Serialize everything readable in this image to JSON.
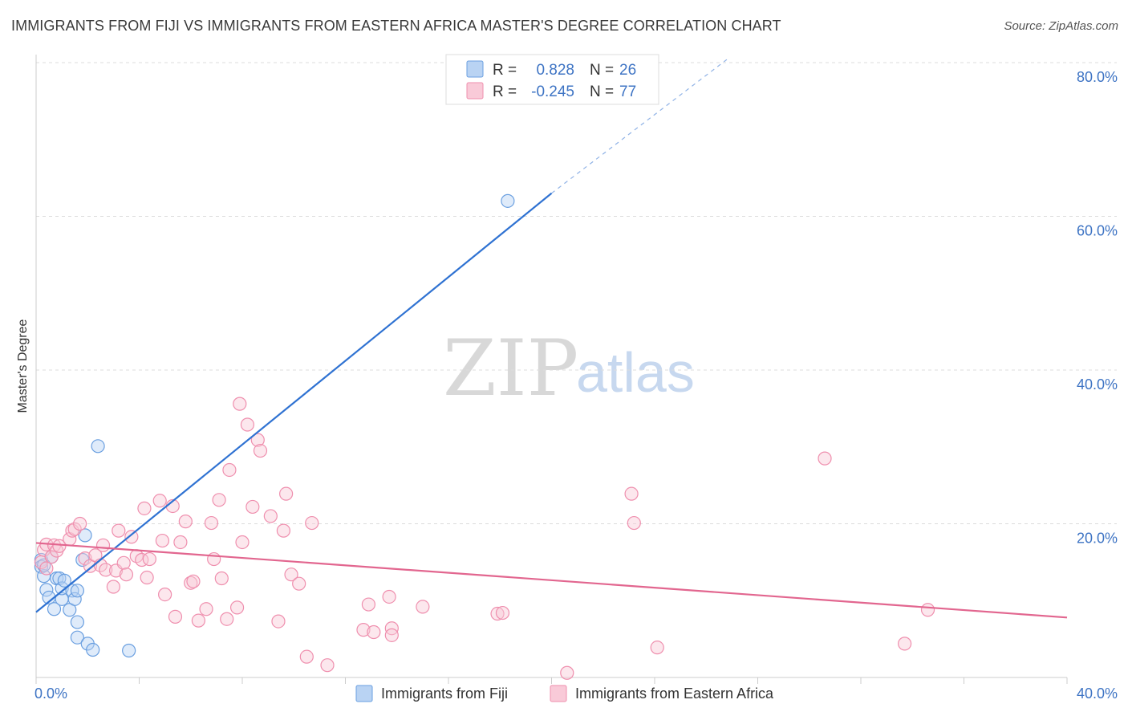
{
  "header": {
    "title": "IMMIGRANTS FROM FIJI VS IMMIGRANTS FROM EASTERN AFRICA MASTER'S DEGREE CORRELATION CHART",
    "source": "Source: ZipAtlas.com"
  },
  "watermark": {
    "zip": "ZIP",
    "atlas": "atlas"
  },
  "legend": {
    "r_label": "R =",
    "n_label": "N =",
    "rows": [
      {
        "r": "0.828",
        "n": "26",
        "color": "#a9c8f0"
      },
      {
        "r": "-0.245",
        "n": "77",
        "color": "#f7b8cb"
      }
    ]
  },
  "chart_data": {
    "type": "scatter",
    "ylabel": "Master's Degree",
    "xlim": [
      0,
      40
    ],
    "ylim": [
      0,
      80
    ],
    "x_ticks": [
      "0.0%",
      "40.0%"
    ],
    "y_ticks": [
      "20.0%",
      "40.0%",
      "60.0%",
      "80.0%"
    ],
    "grid": true,
    "legend_position": "top-center",
    "series": [
      {
        "name": "Immigrants from Fiji",
        "color": "#6a9fe0",
        "fill": "#b9d3f3",
        "trend": {
          "x": [
            0,
            20
          ],
          "y": [
            8.5,
            63
          ]
        },
        "trend_ext": {
          "x": [
            20,
            26.8
          ],
          "y": [
            63,
            80.4
          ]
        },
        "points": [
          [
            0.2,
            15.3
          ],
          [
            0.2,
            14.4
          ],
          [
            0.3,
            13.2
          ],
          [
            0.4,
            11.4
          ],
          [
            0.5,
            10.4
          ],
          [
            0.6,
            15.7
          ],
          [
            0.7,
            8.9
          ],
          [
            0.8,
            12.9
          ],
          [
            0.9,
            12.9
          ],
          [
            1.0,
            10.2
          ],
          [
            1.0,
            11.6
          ],
          [
            1.1,
            12.6
          ],
          [
            1.3,
            8.8
          ],
          [
            1.4,
            11.3
          ],
          [
            1.5,
            10.2
          ],
          [
            1.6,
            11.3
          ],
          [
            1.6,
            7.2
          ],
          [
            1.6,
            5.2
          ],
          [
            1.8,
            15.3
          ],
          [
            1.9,
            18.5
          ],
          [
            2.0,
            4.4
          ],
          [
            2.2,
            3.6
          ],
          [
            2.4,
            30.1
          ],
          [
            3.6,
            3.5
          ],
          [
            0.3,
            14.6
          ],
          [
            18.3,
            62.0
          ]
        ]
      },
      {
        "name": "Immigrants from Eastern Africa",
        "color": "#ef8fae",
        "fill": "#f9cad8",
        "trend": {
          "x": [
            0,
            40
          ],
          "y": [
            17.5,
            7.8
          ]
        },
        "points": [
          [
            0.2,
            15.0
          ],
          [
            0.3,
            16.6
          ],
          [
            0.4,
            14.2
          ],
          [
            0.4,
            17.3
          ],
          [
            0.6,
            15.7
          ],
          [
            0.7,
            17.2
          ],
          [
            0.8,
            16.5
          ],
          [
            0.9,
            17.1
          ],
          [
            1.3,
            18.0
          ],
          [
            1.4,
            19.1
          ],
          [
            1.5,
            19.3
          ],
          [
            1.7,
            20.0
          ],
          [
            1.9,
            15.5
          ],
          [
            2.1,
            14.5
          ],
          [
            2.3,
            15.9
          ],
          [
            2.5,
            14.6
          ],
          [
            2.6,
            17.2
          ],
          [
            2.7,
            14.0
          ],
          [
            3.0,
            11.8
          ],
          [
            3.1,
            13.9
          ],
          [
            3.2,
            19.1
          ],
          [
            3.4,
            14.9
          ],
          [
            3.5,
            13.4
          ],
          [
            3.7,
            18.3
          ],
          [
            3.9,
            15.8
          ],
          [
            4.1,
            15.3
          ],
          [
            4.2,
            22.0
          ],
          [
            4.3,
            13.0
          ],
          [
            4.4,
            15.4
          ],
          [
            4.8,
            23.0
          ],
          [
            4.9,
            17.8
          ],
          [
            5.0,
            10.8
          ],
          [
            5.3,
            22.3
          ],
          [
            5.4,
            7.9
          ],
          [
            5.6,
            17.6
          ],
          [
            5.8,
            20.3
          ],
          [
            6.0,
            12.3
          ],
          [
            6.1,
            12.5
          ],
          [
            6.3,
            7.4
          ],
          [
            6.6,
            8.9
          ],
          [
            6.8,
            20.1
          ],
          [
            6.9,
            15.4
          ],
          [
            7.1,
            23.1
          ],
          [
            7.2,
            12.9
          ],
          [
            7.4,
            7.6
          ],
          [
            7.5,
            27.0
          ],
          [
            7.8,
            9.1
          ],
          [
            7.9,
            35.6
          ],
          [
            8.0,
            17.6
          ],
          [
            8.2,
            32.9
          ],
          [
            8.4,
            22.2
          ],
          [
            8.6,
            30.9
          ],
          [
            8.7,
            29.5
          ],
          [
            9.1,
            21.0
          ],
          [
            9.4,
            7.3
          ],
          [
            9.6,
            19.1
          ],
          [
            9.7,
            23.9
          ],
          [
            9.9,
            13.4
          ],
          [
            10.2,
            12.2
          ],
          [
            10.5,
            2.7
          ],
          [
            10.7,
            20.1
          ],
          [
            11.3,
            1.6
          ],
          [
            12.7,
            6.2
          ],
          [
            12.9,
            9.5
          ],
          [
            13.1,
            5.9
          ],
          [
            13.7,
            10.5
          ],
          [
            13.8,
            6.4
          ],
          [
            13.8,
            5.5
          ],
          [
            15.0,
            9.2
          ],
          [
            17.9,
            8.3
          ],
          [
            18.1,
            8.4
          ],
          [
            20.6,
            0.6
          ],
          [
            23.1,
            23.9
          ],
          [
            23.2,
            20.1
          ],
          [
            24.1,
            3.9
          ],
          [
            30.6,
            28.5
          ],
          [
            33.7,
            4.4
          ],
          [
            34.6,
            8.8
          ]
        ]
      }
    ]
  }
}
